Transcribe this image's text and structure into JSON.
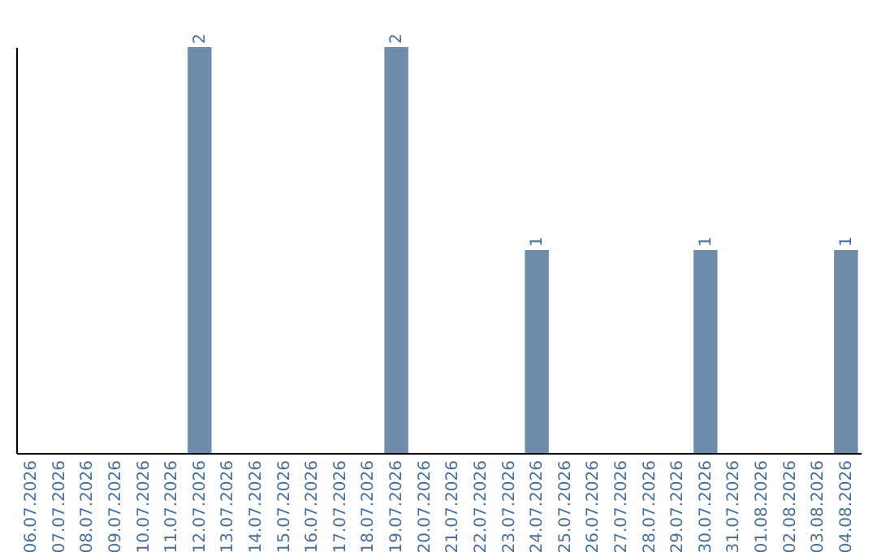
{
  "chart_data": {
    "type": "bar",
    "categories": [
      "06.07.2026",
      "07.07.2026",
      "08.07.2026",
      "09.07.2026",
      "10.07.2026",
      "11.07.2026",
      "12.07.2026",
      "13.07.2026",
      "14.07.2026",
      "15.07.2026",
      "16.07.2026",
      "17.07.2026",
      "18.07.2026",
      "19.07.2026",
      "20.07.2026",
      "21.07.2026",
      "22.07.2026",
      "23.07.2026",
      "24.07.2026",
      "25.07.2026",
      "26.07.2026",
      "27.07.2026",
      "28.07.2026",
      "29.07.2026",
      "30.07.2026",
      "31.07.2026",
      "01.08.2026",
      "02.08.2026",
      "03.08.2026",
      "04.08.2026"
    ],
    "values": [
      0,
      0,
      0,
      0,
      0,
      0,
      2,
      0,
      0,
      0,
      0,
      0,
      0,
      2,
      0,
      0,
      0,
      0,
      1,
      0,
      0,
      0,
      0,
      0,
      1,
      0,
      0,
      0,
      0,
      1
    ],
    "value_labels": [
      null,
      null,
      null,
      null,
      null,
      null,
      "2",
      null,
      null,
      null,
      null,
      null,
      null,
      "2",
      null,
      null,
      null,
      null,
      "1",
      null,
      null,
      null,
      null,
      null,
      "1",
      null,
      null,
      null,
      null,
      "1"
    ],
    "color": "#6f8caa",
    "tick_labels": "x"
  }
}
